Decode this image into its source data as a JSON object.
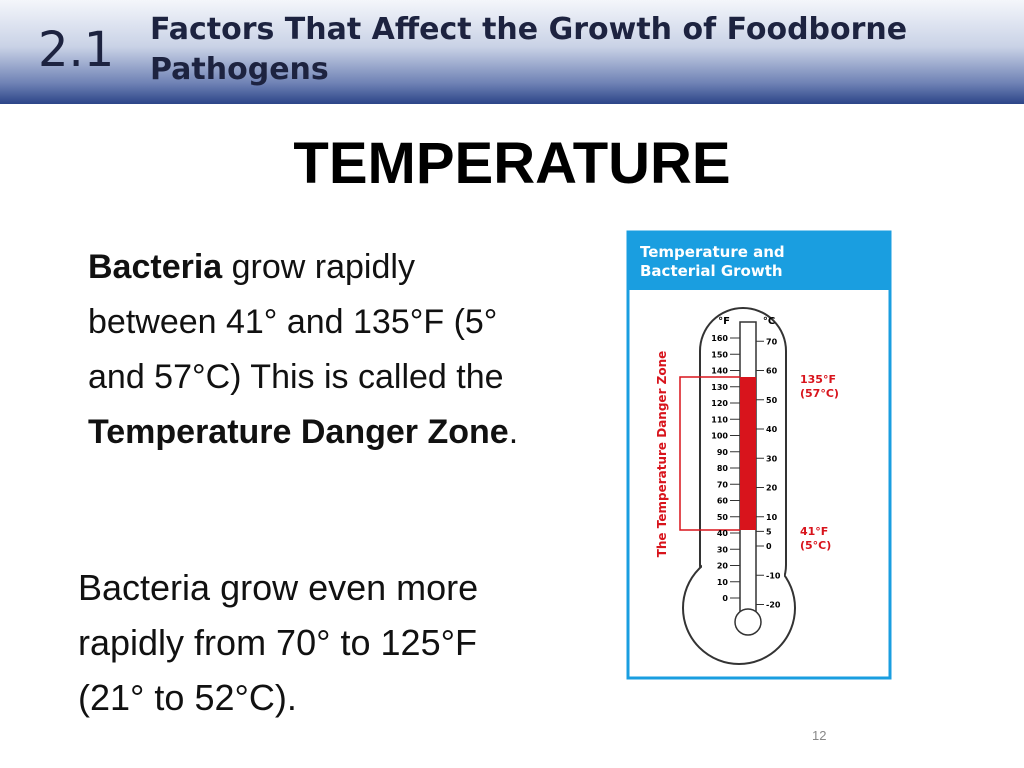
{
  "header": {
    "number": "2.1",
    "title": "Factors That Affect the Growth of Foodborne Pathogens"
  },
  "heading": "TEMPERATURE",
  "paragraph1": {
    "bold1": "Bacteria",
    "text1": " grow rapidly between 41° and 135°F (5° and 57°C)  This is called the ",
    "bold2": "Temperature Danger Zone",
    "text2": "."
  },
  "paragraph2": "Bacteria grow even more rapidly from 70° to 125°F (21° to 52°C).",
  "figure": {
    "title": [
      "Temperature and",
      "Bacterial Growth"
    ],
    "f_unit": "°F",
    "c_unit": "°C",
    "f_ticks": [
      160,
      150,
      140,
      130,
      120,
      110,
      100,
      90,
      80,
      70,
      60,
      50,
      40,
      30,
      20,
      10,
      0
    ],
    "c_ticks": [
      70,
      60,
      50,
      40,
      30,
      20,
      10,
      5,
      0,
      -10,
      -20
    ],
    "zone_label": "The Temperature Danger Zone",
    "high_label": [
      "135°F",
      "(57°C)"
    ],
    "low_label": [
      "41°F",
      "(5°C)"
    ]
  },
  "page_number": "12"
}
